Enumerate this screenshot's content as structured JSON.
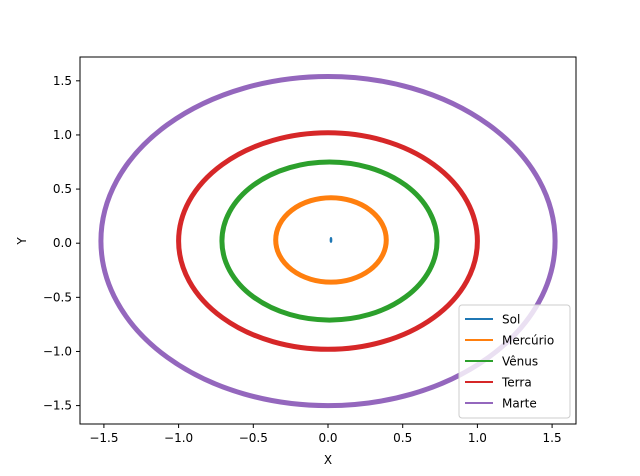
{
  "chart_data": {
    "type": "line",
    "title": "",
    "xlabel": "X",
    "ylabel": "Y",
    "xlim": [
      -1.66,
      1.66
    ],
    "ylim": [
      -1.67,
      1.72
    ],
    "xticks": [
      {
        "value": -1.5,
        "label": "−1.5"
      },
      {
        "value": -1.0,
        "label": "−1.0"
      },
      {
        "value": -0.5,
        "label": "−0.5"
      },
      {
        "value": 0.0,
        "label": "0.0"
      },
      {
        "value": 0.5,
        "label": "0.5"
      },
      {
        "value": 1.0,
        "label": "1.0"
      },
      {
        "value": 1.5,
        "label": "1.5"
      }
    ],
    "yticks": [
      {
        "value": -1.5,
        "label": "−1.5"
      },
      {
        "value": -1.0,
        "label": "−1.0"
      },
      {
        "value": -0.5,
        "label": "−0.5"
      },
      {
        "value": 0.0,
        "label": "0.0"
      },
      {
        "value": 0.5,
        "label": "0.5"
      },
      {
        "value": 1.0,
        "label": "1.0"
      },
      {
        "value": 1.5,
        "label": "1.5"
      }
    ],
    "grid": false,
    "legend_position": "lower-right",
    "series": [
      {
        "name": "Sol",
        "color": "#1f77b4",
        "shape": "point",
        "center": [
          0.02,
          0.03
        ],
        "rx": 0.004,
        "ry": 0.02
      },
      {
        "name": "Mercúrio",
        "color": "#ff7f0e",
        "shape": "ellipse",
        "center": [
          0.02,
          0.03
        ],
        "rx": 0.37,
        "ry": 0.39
      },
      {
        "name": "Vênus",
        "color": "#2ca02c",
        "shape": "ellipse",
        "center": [
          0.01,
          0.02
        ],
        "rx": 0.72,
        "ry": 0.73
      },
      {
        "name": "Terra",
        "color": "#d62728",
        "shape": "ellipse",
        "center": [
          0.0,
          0.02
        ],
        "rx": 1.0,
        "ry": 1.0
      },
      {
        "name": "Marte",
        "color": "#9467bd",
        "shape": "ellipse",
        "center": [
          0.0,
          0.02
        ],
        "rx": 1.52,
        "ry": 1.52
      }
    ]
  }
}
